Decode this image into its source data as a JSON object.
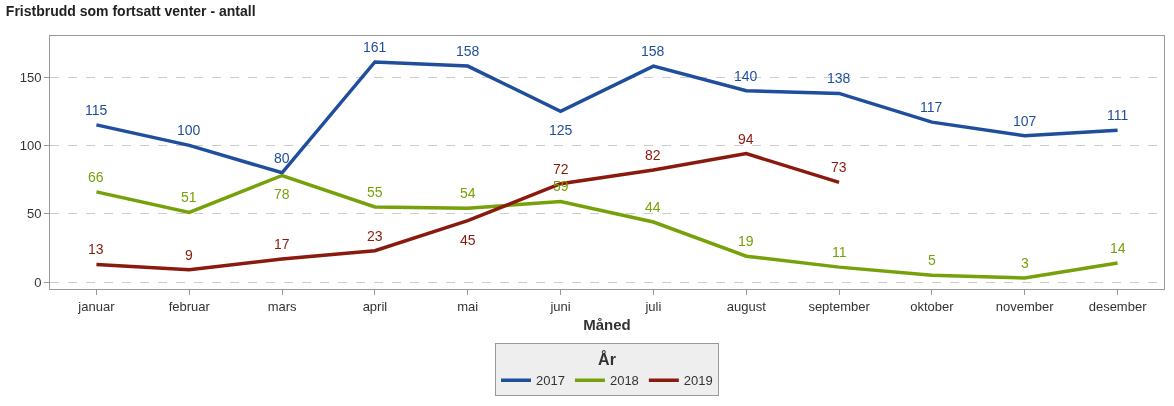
{
  "chart_data": {
    "type": "line",
    "title": "Fristbrudd som fortsatt venter - antall",
    "xlabel": "Måned",
    "legend_title": "År",
    "categories": [
      "januar",
      "februar",
      "mars",
      "april",
      "mai",
      "juni",
      "juli",
      "august",
      "september",
      "oktober",
      "november",
      "desember"
    ],
    "series": [
      {
        "name": "2017",
        "color": "#1f4e9c",
        "values": [
          115,
          100,
          80,
          161,
          158,
          125,
          158,
          140,
          138,
          117,
          107,
          111
        ]
      },
      {
        "name": "2018",
        "color": "#76a10a",
        "values": [
          66,
          51,
          78,
          55,
          54,
          59,
          44,
          19,
          11,
          5,
          3,
          14
        ]
      },
      {
        "name": "2019",
        "color": "#8b1a0e",
        "values": [
          13,
          9,
          17,
          23,
          45,
          72,
          82,
          94,
          73,
          null,
          null,
          null
        ]
      }
    ],
    "ylim": [
      -5,
      180
    ],
    "yticks": [
      0,
      50,
      100,
      150
    ],
    "grid": "y",
    "legend": "bottom",
    "data_labels": true,
    "marker": "none",
    "line_style": "solid"
  }
}
